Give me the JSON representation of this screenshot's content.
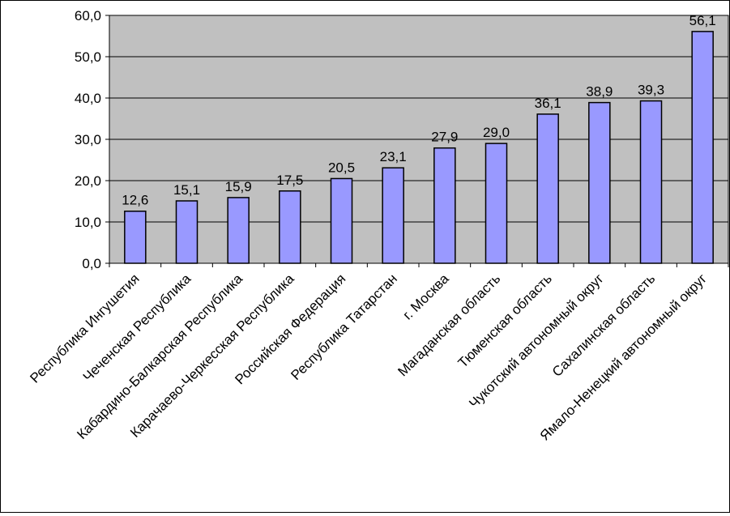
{
  "chart_data": {
    "type": "bar",
    "categories": [
      "Республика Ингушетия",
      "Чеченская Республика",
      "Кабардино-Балкарская Республика",
      "Карачаево-Черкесская Республика",
      "Российская Федерация",
      "Республика Татарстан",
      "г. Москва",
      "Магаданская область",
      "Тюменская область",
      "Чукотский автономный округ",
      "Сахалинская область",
      "Ямало-Ненецкий автономный округ"
    ],
    "values": [
      12.6,
      15.1,
      15.9,
      17.5,
      20.5,
      23.1,
      27.9,
      29.0,
      36.1,
      38.9,
      39.3,
      56.1
    ],
    "value_labels": [
      "12,6",
      "15,1",
      "15,9",
      "17,5",
      "20,5",
      "23,1",
      "27,9",
      "29,0",
      "36,1",
      "38,9",
      "39,3",
      "56,1"
    ],
    "yticks": [
      0,
      10,
      20,
      30,
      40,
      50,
      60
    ],
    "ytick_labels": [
      "0,0",
      "10,0",
      "20,0",
      "30,0",
      "40,0",
      "50,0",
      "60,0"
    ],
    "ylim": [
      0,
      60
    ],
    "title": "",
    "xlabel": "",
    "ylabel": "",
    "grid": true,
    "legend": false,
    "colors": {
      "plot_background": "#C0C0C0",
      "bar_fill": "#9999FF",
      "bar_stroke": "#000000",
      "gridline": "#000000"
    }
  }
}
